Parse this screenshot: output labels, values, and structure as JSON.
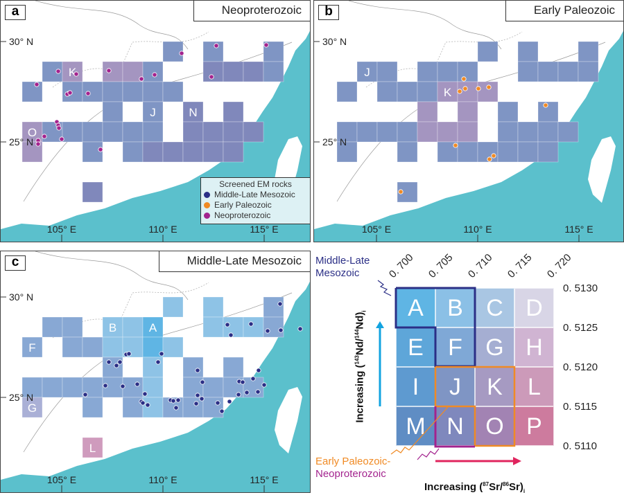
{
  "panels": [
    {
      "id": "a",
      "title": "Neoproterozoic",
      "cell_labels": [
        "K",
        "J",
        "N",
        "O"
      ]
    },
    {
      "id": "b",
      "title": "Early Paleozoic",
      "cell_labels": [
        "J",
        "K"
      ]
    },
    {
      "id": "c",
      "title": "Middle-Late Mesozoic",
      "cell_labels": [
        "B",
        "A",
        "F",
        "G",
        "L"
      ]
    }
  ],
  "axes": {
    "lat": [
      "30° N",
      "25° N"
    ],
    "lon": [
      "105° E",
      "110° E",
      "115° E"
    ]
  },
  "legend": {
    "title": "Screened EM rocks",
    "items": [
      {
        "label": "Middle-Late Mesozoic",
        "color": "#2b2f86"
      },
      {
        "label": "Early Paleozoic",
        "color": "#f08a24"
      },
      {
        "label": "Neoproterozoic",
        "color": "#a3238e"
      }
    ]
  },
  "colors": {
    "sea": "#5bc0cc",
    "dot_a": "#a3238e",
    "dot_b": "#f08a24",
    "dot_c": "#2b2f86"
  },
  "matrix": {
    "letters": [
      "A",
      "B",
      "C",
      "D",
      "E",
      "F",
      "G",
      "H",
      "I",
      "J",
      "K",
      "L",
      "M",
      "N",
      "O",
      "P"
    ],
    "colors": [
      "#5fb5e4",
      "#8bc0e6",
      "#a9c6e3",
      "#d8d5e6",
      "#5ea6d9",
      "#7fa8d6",
      "#a5aed2",
      "#d0b4d2",
      "#5e9ad0",
      "#7f95c4",
      "#a69ac2",
      "#cc9ab9",
      "#5f8dc4",
      "#7f88bd",
      "#a283b3",
      "#cd7b9e"
    ],
    "sr_ticks": [
      "0. 700",
      "0. 705",
      "0. 710",
      "0. 715",
      "0. 720"
    ],
    "nd_ticks": [
      "0. 5130",
      "0. 5125",
      "0. 5120",
      "0. 5115",
      "0. 5110"
    ],
    "xlabel": {
      "pre": "Increasing (",
      "s1": "87",
      "m": "Sr/",
      "s2": "86",
      "post": "Sr)",
      "sub": "i"
    },
    "ylabel": {
      "pre": "Increasing (",
      "s1": "143",
      "m": "Nd/",
      "s2": "144",
      "post": "Nd)",
      "sub": "i"
    },
    "group_mesozoic": [
      "Middle-Late",
      "Mesozoic"
    ],
    "group_early": "Early Paleozoic-",
    "group_neo": "Neoproterozoic"
  }
}
